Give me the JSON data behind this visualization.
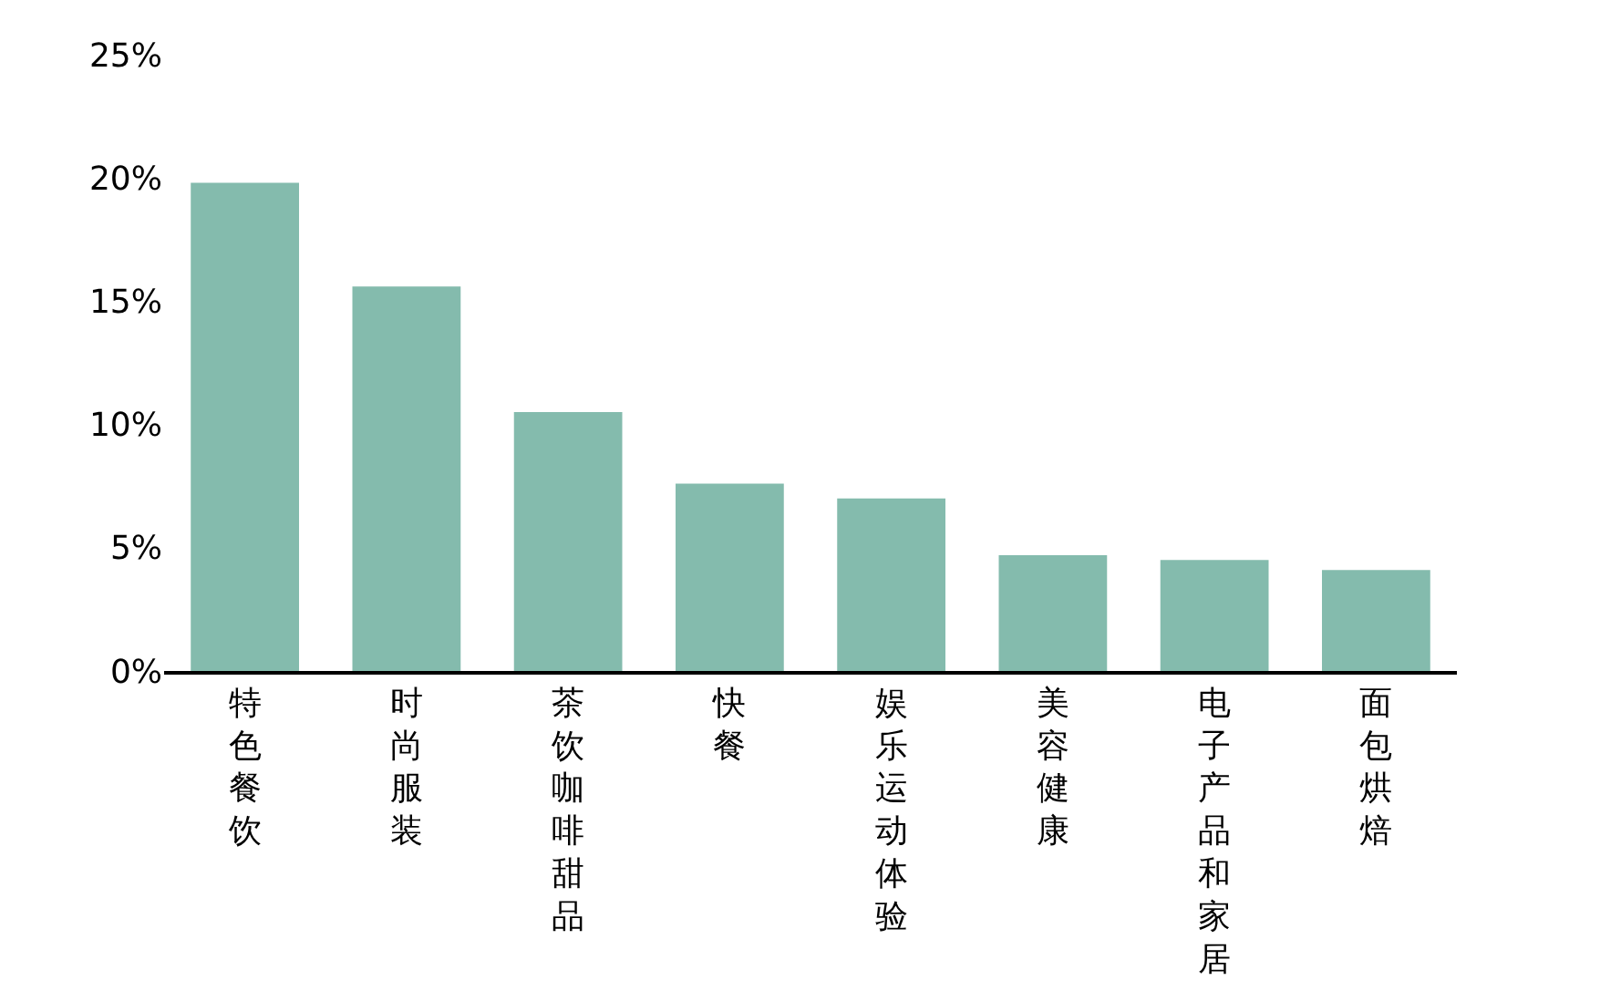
{
  "chart_data": {
    "type": "bar",
    "categories": [
      "特色餐饮",
      "时尚服装",
      "茶饮咖啡甜品",
      "快餐",
      "娱乐运动体验",
      "美容健康",
      "电子产品和家居",
      "面包烘焙"
    ],
    "values": [
      19.8,
      15.6,
      10.5,
      7.6,
      7.0,
      4.7,
      4.5,
      4.1
    ],
    "color": "#84bbad",
    "ylim": [
      0,
      25
    ],
    "yticks": [
      {
        "value": 0,
        "label": "0%"
      },
      {
        "value": 5,
        "label": "5%"
      },
      {
        "value": 10,
        "label": "10%"
      },
      {
        "value": 15,
        "label": "15%"
      },
      {
        "value": 20,
        "label": "20%"
      },
      {
        "value": 25,
        "label": "25%"
      }
    ],
    "legend": false
  }
}
